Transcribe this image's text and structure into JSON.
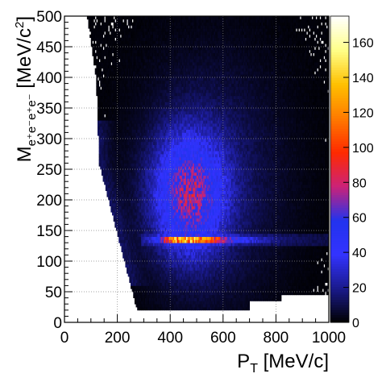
{
  "chart_data": {
    "type": "heatmap",
    "title": "",
    "xlabel": {
      "main": "P",
      "sub": "T",
      "unit": " [MeV/c]"
    },
    "ylabel": {
      "main": "M",
      "sub": "e⁺e⁻e⁺e⁻",
      "unit": " [MeV/c",
      "sup": "2",
      "close": "]"
    },
    "xlim": [
      0,
      1000
    ],
    "ylim": [
      0,
      500
    ],
    "x_ticks": [
      0,
      200,
      400,
      600,
      800,
      1000
    ],
    "y_ticks": [
      0,
      50,
      100,
      150,
      200,
      250,
      300,
      350,
      400,
      450,
      500
    ],
    "grid": true,
    "colorbar": {
      "range": [
        0,
        175
      ],
      "ticks": [
        0,
        20,
        40,
        60,
        80,
        100,
        120,
        140,
        160
      ],
      "colormap": [
        "#000000",
        "#1a1a8c",
        "#3333ff",
        "#2233ee",
        "#cc2277",
        "#ff2a00",
        "#ff7a00",
        "#ffc000",
        "#ffff88",
        "#ffffff"
      ]
    },
    "bin_size": {
      "x": 5,
      "y": 5
    },
    "features": {
      "populated_region": "kinematically allowed region bounded on the left by a diagonal edge from about (120, 500) to (250, 30)",
      "main_blob_center": [
        470,
        210
      ],
      "peak_band": {
        "y": 135,
        "x_range": [
          290,
          1000
        ],
        "peak_x": 430,
        "peak_count": 165
      }
    }
  }
}
